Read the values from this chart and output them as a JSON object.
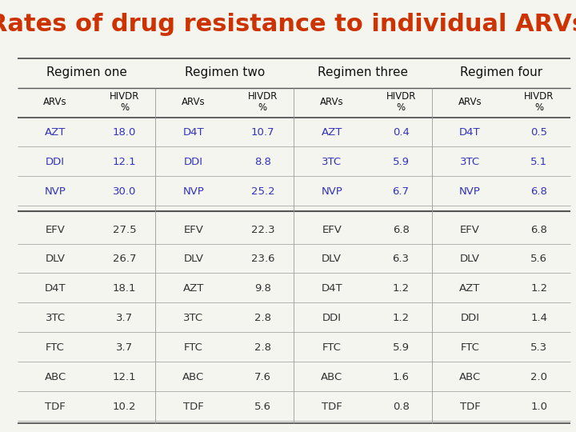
{
  "title": "Rates of drug resistance to individual ARVs",
  "title_color": "#CC3300",
  "title_fontsize": 22,
  "background_color": "#F5F5F0",
  "regimen_headers": [
    "Regimen one",
    "Regimen two",
    "Regimen three",
    "Regimen four"
  ],
  "col_headers": [
    "ARVs",
    "HIVDR\n%"
  ],
  "blue_rows": [
    [
      "AZT",
      "18.0",
      "D4T",
      "10.7",
      "AZT",
      "0.4",
      "D4T",
      "0.5"
    ],
    [
      "DDI",
      "12.1",
      "DDI",
      "8.8",
      "3TC",
      "5.9",
      "3TC",
      "5.1"
    ],
    [
      "NVP",
      "30.0",
      "NVP",
      "25.2",
      "NVP",
      "6.7",
      "NVP",
      "6.8"
    ]
  ],
  "black_rows": [
    [
      "EFV",
      "27.5",
      "EFV",
      "22.3",
      "EFV",
      "6.8",
      "EFV",
      "6.8"
    ],
    [
      "DLV",
      "26.7",
      "DLV",
      "23.6",
      "DLV",
      "6.3",
      "DLV",
      "5.6"
    ],
    [
      "D4T",
      "18.1",
      "AZT",
      "9.8",
      "D4T",
      "1.2",
      "AZT",
      "1.2"
    ],
    [
      "3TC",
      "3.7",
      "3TC",
      "2.8",
      "DDI",
      "1.2",
      "DDI",
      "1.4"
    ],
    [
      "FTC",
      "3.7",
      "FTC",
      "2.8",
      "FTC",
      "5.9",
      "FTC",
      "5.3"
    ],
    [
      "ABC",
      "12.1",
      "ABC",
      "7.6",
      "ABC",
      "1.6",
      "ABC",
      "2.0"
    ],
    [
      "TDF",
      "10.2",
      "TDF",
      "5.6",
      "TDF",
      "0.8",
      "TDF",
      "1.0"
    ]
  ],
  "blue_text_color": "#3333BB",
  "black_text_color": "#333333",
  "header_text_color": "#111111",
  "line_color": "#555555",
  "thin_line_color": "#999999"
}
